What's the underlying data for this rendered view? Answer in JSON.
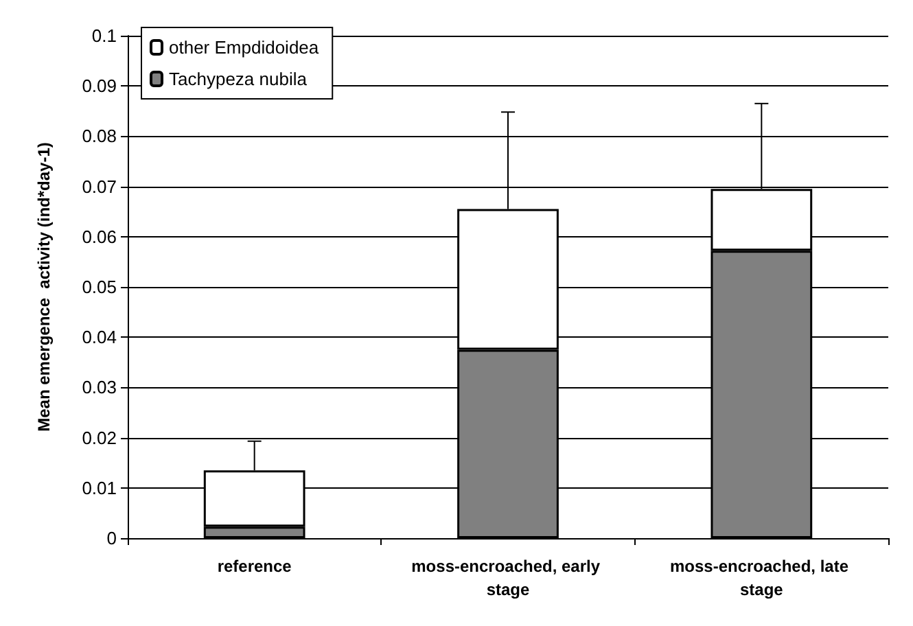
{
  "chart_data": {
    "type": "bar",
    "ylabel": "Mean emergence  activity (ind*day-1)",
    "categories": [
      "reference",
      "moss-encroached, early stage",
      "moss-encroached, late stage"
    ],
    "stacked": true,
    "series": [
      {
        "name": "Tachypeza nubila",
        "color": "#808080",
        "values": [
          0.0023,
          0.0375,
          0.0572
        ]
      },
      {
        "name": "other Empdidoidea",
        "color": "#ffffff",
        "values": [
          0.0112,
          0.028,
          0.0123
        ],
        "errors": [
          [
            0.0135,
            0.0193
          ],
          [
            0.0655,
            0.0848
          ],
          [
            0.0695,
            0.0865
          ]
        ]
      }
    ],
    "ylim": [
      0,
      0.1
    ],
    "yticks": [
      0,
      0.01,
      0.02,
      0.03,
      0.04,
      0.05,
      0.06,
      0.07,
      0.08,
      0.09,
      0.1
    ],
    "grid": "y",
    "legend": "top left"
  }
}
